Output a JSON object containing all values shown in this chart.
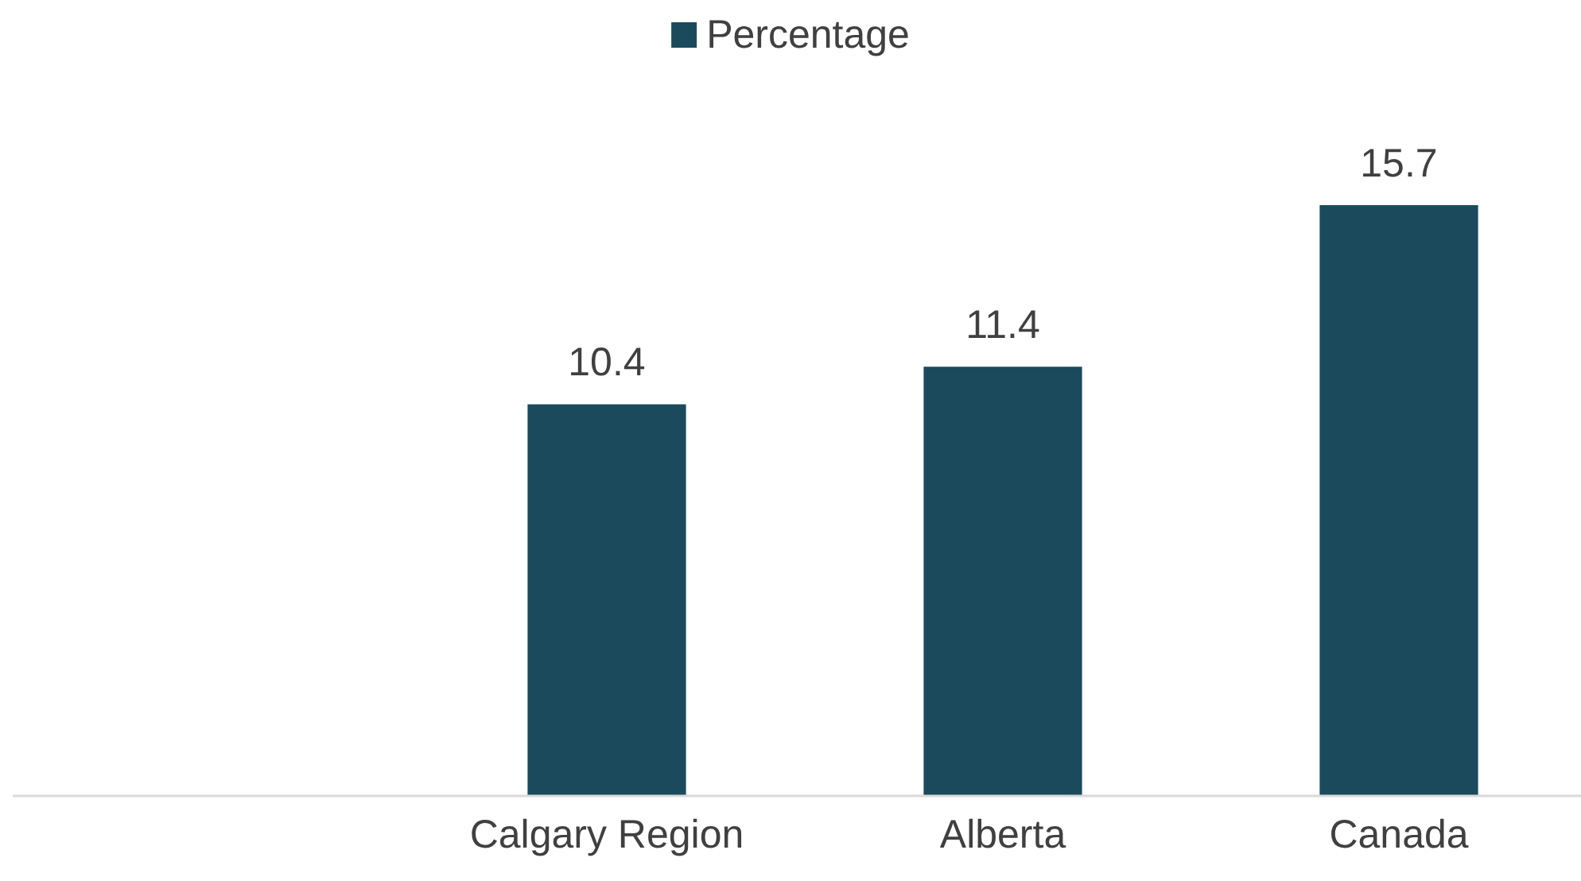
{
  "chart_data": {
    "type": "bar",
    "categories": [
      null,
      "Calgary Region",
      "Alberta",
      "Canada"
    ],
    "series": [
      {
        "name": "Percentage",
        "color": "#1b4a5c",
        "values": [
          null,
          10.4,
          11.4,
          15.7
        ]
      }
    ],
    "tick_labels": "x",
    "data_labels": true,
    "legend": "top"
  }
}
